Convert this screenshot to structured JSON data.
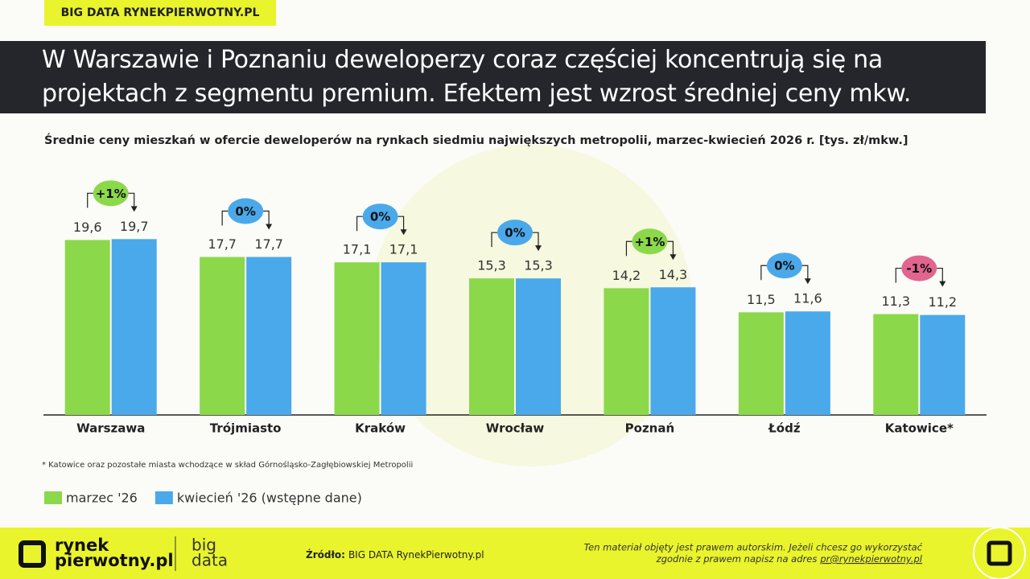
{
  "tag": "BIG DATA RYNEKPIERWOTNY.PL",
  "chart_data": {
    "type": "bar",
    "title": "W Warszawie i Poznaniu deweloperzy coraz częściej koncentrują się na projektach z segmentu premium. Efektem jest wzrost średniej ceny mkw.",
    "subtitle": "Średnie ceny mieszkań w ofercie deweloperów na rynkach siedmiu największych metropolii, marzec-kwiecień 2026 r. [tys. zł/mkw.]",
    "categories": [
      "Warszawa",
      "Trójmiasto",
      "Kraków",
      "Wrocław",
      "Poznań",
      "Łódź",
      "Katowice*"
    ],
    "series": [
      {
        "name": "marzec '26",
        "color": "#8cd84b",
        "values": [
          19.6,
          17.7,
          17.1,
          15.3,
          14.2,
          11.5,
          11.3
        ],
        "value_labels": [
          "19,6",
          "17,7",
          "17,1",
          "15,3",
          "14,2",
          "11,5",
          "11,3"
        ]
      },
      {
        "name": "kwiecień '26 (wstępne dane)",
        "color": "#4aa9ea",
        "values": [
          19.7,
          17.7,
          17.1,
          15.3,
          14.3,
          11.6,
          11.2
        ],
        "value_labels": [
          "19,7",
          "17,7",
          "17,1",
          "15,3",
          "14,3",
          "11,6",
          "11,2"
        ]
      }
    ],
    "changes": [
      {
        "label": "+1%",
        "color": "#8cd84b"
      },
      {
        "label": "0%",
        "color": "#4aa9ea"
      },
      {
        "label": "0%",
        "color": "#4aa9ea"
      },
      {
        "label": "0%",
        "color": "#4aa9ea"
      },
      {
        "label": "+1%",
        "color": "#8cd84b"
      },
      {
        "label": "0%",
        "color": "#4aa9ea"
      },
      {
        "label": "-1%",
        "color": "#e2658f"
      }
    ],
    "ylim": [
      0,
      20
    ],
    "footnote": "* Katowice oraz pozostałe miasta wchodzące w skład Górnośląsko-Zagłębiowskiej Metropolii"
  },
  "footer": {
    "logo_top": "rynek",
    "logo_bottom": "pierwotny.pl",
    "big": "big",
    "data": "data",
    "source_label": "Źródło:",
    "source": "BIG DATA RynekPierwotny.pl",
    "copyright_1": "Ten materiał objęty jest prawem autorskim. Jeżeli chcesz go wykorzystać",
    "copyright_2": "zgodnie z prawem napisz na adres",
    "email": "pr@rynekpierwotny.pl"
  }
}
